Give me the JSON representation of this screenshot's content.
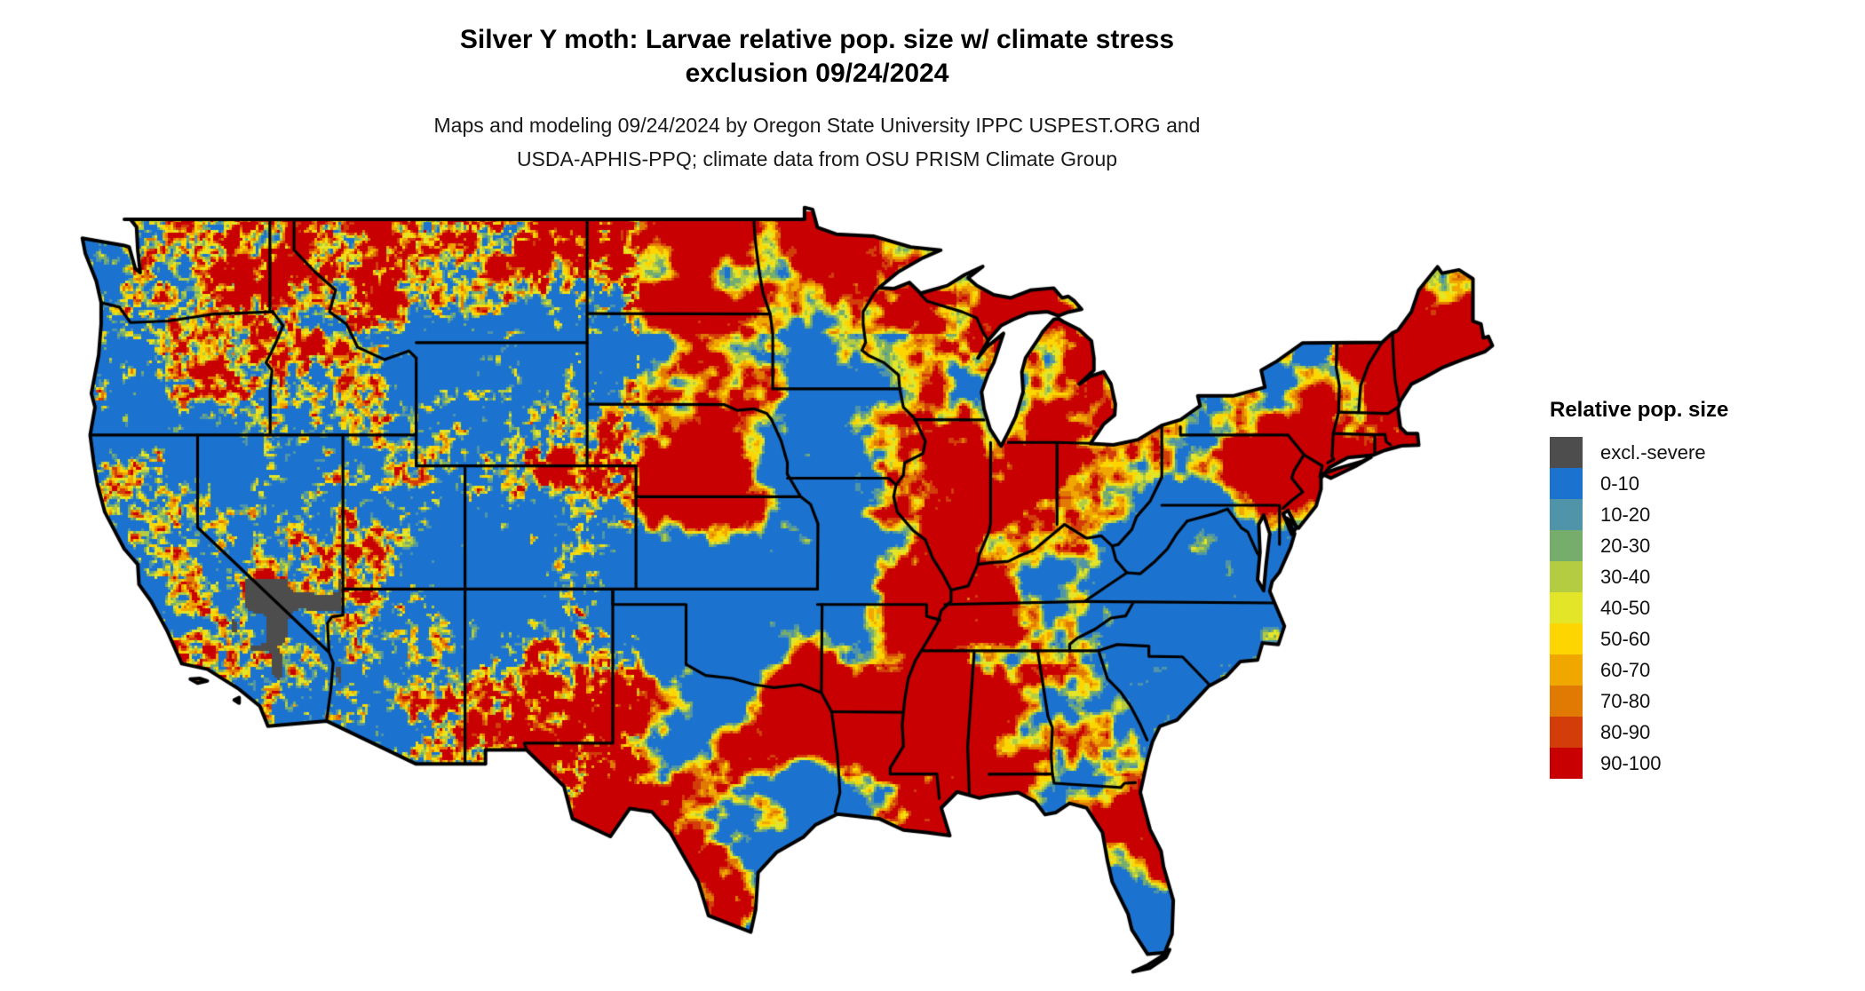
{
  "title": {
    "line1": "Silver Y moth: Larvae relative pop. size w/ climate stress",
    "line2": "exclusion 09/24/2024"
  },
  "subtitle": {
    "line1": "Maps and modeling 09/24/2024 by Oregon State University IPPC USPEST.ORG and",
    "line2": "USDA-APHIS-PPQ; climate data from OSU PRISM Climate Group"
  },
  "legend": {
    "title": "Relative pop. size",
    "items": [
      {
        "label": "excl.-severe",
        "color": "#4d4d4d"
      },
      {
        "label": "0-10",
        "color": "#1c73cf"
      },
      {
        "label": "10-20",
        "color": "#4f94a8"
      },
      {
        "label": "20-30",
        "color": "#77ad6c"
      },
      {
        "label": "30-40",
        "color": "#b3cc42"
      },
      {
        "label": "40-50",
        "color": "#e3e529"
      },
      {
        "label": "50-60",
        "color": "#fdd501"
      },
      {
        "label": "60-70",
        "color": "#f0a800"
      },
      {
        "label": "70-80",
        "color": "#e17a03"
      },
      {
        "label": "80-90",
        "color": "#d23d0a"
      },
      {
        "label": "90-100",
        "color": "#c80002"
      }
    ]
  },
  "map": {
    "region": "Continental United States",
    "background": "#ffffff",
    "border_color": "#000000"
  },
  "chart_data": {
    "type": "heatmap",
    "subtype": "raster-choropleth-map",
    "title": "Silver Y moth: Larvae relative pop. size w/ climate stress exclusion 09/24/2024",
    "legend_title": "Relative pop. size",
    "classes": [
      "excl.-severe",
      "0-10",
      "10-20",
      "20-30",
      "30-40",
      "40-50",
      "50-60",
      "60-70",
      "70-80",
      "80-90",
      "90-100"
    ],
    "colors": [
      "#4d4d4d",
      "#1c73cf",
      "#4f94a8",
      "#77ad6c",
      "#b3cc42",
      "#e3e529",
      "#fdd501",
      "#f0a800",
      "#e17a03",
      "#d23d0a",
      "#c80002"
    ],
    "value_range": [
      0,
      100
    ],
    "legend_position": "right",
    "notes_visible_pattern": "Mottled mix of low (blue) and high (red) relative population values across CONUS; fine-grained speckle in western mountains, larger smooth patches in Midwest/East; excl.-severe gray patches in southeastern California desert; lakes and non-US area white; black state borders"
  }
}
